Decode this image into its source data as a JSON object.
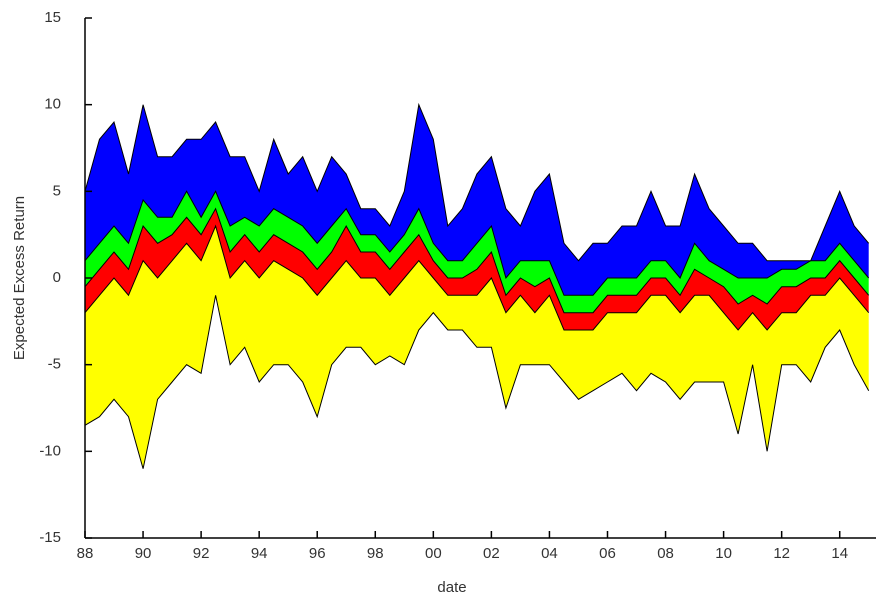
{
  "chart_data": {
    "type": "band",
    "xlabel": "date",
    "ylabel": "Expected Excess Return",
    "x": [
      1988,
      1988.5,
      1989,
      1989.5,
      1990,
      1990.5,
      1991,
      1991.5,
      1992,
      1992.5,
      1993,
      1993.5,
      1994,
      1994.5,
      1995,
      1995.5,
      1996,
      1996.5,
      1997,
      1997.5,
      1998,
      1998.5,
      1999,
      1999.5,
      2000,
      2000.5,
      2001,
      2001.5,
      2002,
      2002.5,
      2003,
      2003.5,
      2004,
      2004.5,
      2005,
      2005.5,
      2006,
      2006.5,
      2007,
      2007.5,
      2008,
      2008.5,
      2009,
      2009.5,
      2010,
      2010.5,
      2011,
      2011.5,
      2012,
      2012.5,
      2013,
      2013.5,
      2014,
      2014.5,
      2015
    ],
    "line_color": "#000000",
    "series": [
      {
        "values": [
          -8.5,
          -8,
          -7,
          -8,
          -11,
          -7,
          -6,
          -5,
          -5.5,
          -1,
          -5,
          -4,
          -6,
          -5,
          -5,
          -6,
          -8,
          -5,
          -4,
          -4,
          -5,
          -4.5,
          -5,
          -3,
          -2,
          -3,
          -3,
          -4,
          -4,
          -7.5,
          -5,
          -5,
          -5,
          -6,
          -7,
          -6.5,
          -6,
          -5.5,
          -6.5,
          -5.5,
          -6,
          -7,
          -6,
          -6,
          -6,
          -9,
          -5,
          -10,
          -5,
          -5,
          -6,
          -4,
          -3,
          -5,
          -6.5
        ]
      },
      {
        "color": "#ffff00",
        "values": [
          -2,
          -1,
          0,
          -1,
          1,
          0,
          1,
          2,
          1,
          3,
          0,
          1,
          0,
          1,
          0.5,
          0,
          -1,
          0,
          1,
          0,
          0,
          -1,
          0,
          1,
          0,
          -1,
          -1,
          -1,
          0,
          -2,
          -1,
          -2,
          -1,
          -3,
          -3,
          -3,
          -2,
          -2,
          -2,
          -1,
          -1,
          -2,
          -1,
          -1,
          -2,
          -3,
          -2,
          -3,
          -2,
          -2,
          -1,
          -1,
          0,
          -1,
          -2
        ]
      },
      {
        "color": "#ff0000",
        "values": [
          -0.5,
          0.5,
          1.5,
          0.5,
          3,
          2,
          2.5,
          3.5,
          2.5,
          4,
          1.5,
          2.5,
          1.5,
          2.5,
          2,
          1.5,
          0.5,
          1.5,
          3,
          1.5,
          1.5,
          0.5,
          1.5,
          2.5,
          1,
          0,
          0,
          0.5,
          1.5,
          -1,
          0,
          -0.5,
          0,
          -2,
          -2,
          -2,
          -1,
          -1,
          -1,
          0,
          0,
          -1,
          0.5,
          0,
          -0.5,
          -1.5,
          -1,
          -1.5,
          -0.5,
          -0.5,
          0,
          0,
          1,
          0,
          -1
        ]
      },
      {
        "color": "#00ff00",
        "values": [
          1,
          2,
          3,
          2,
          4.5,
          3.5,
          3.5,
          5,
          3.5,
          5,
          3,
          3.5,
          3,
          4,
          3.5,
          3,
          2,
          3,
          4,
          2.5,
          2.5,
          1.5,
          2.5,
          4,
          2,
          1,
          1,
          2,
          3,
          0,
          1,
          1,
          1,
          -1,
          -1,
          -1,
          0,
          0,
          0,
          1,
          1,
          0,
          2,
          1,
          0.5,
          0,
          0,
          0,
          0.5,
          0.5,
          1,
          1,
          2,
          1,
          0
        ]
      },
      {
        "color": "#0000ff",
        "values": [
          5,
          8,
          9,
          6,
          10,
          7,
          7,
          8,
          8,
          9,
          7,
          7,
          5,
          8,
          6,
          7,
          5,
          7,
          6,
          4,
          4,
          3,
          5,
          10,
          8,
          3,
          4,
          6,
          7,
          4,
          3,
          5,
          6,
          2,
          1,
          2,
          2,
          3,
          3,
          5,
          3,
          3,
          6,
          4,
          3,
          2,
          2,
          1,
          1,
          1,
          1,
          3,
          5,
          3,
          2
        ]
      }
    ],
    "xlim": [
      1988,
      2015.25
    ],
    "xticks": [
      {
        "value": 1988,
        "label": "88"
      },
      {
        "value": 1990,
        "label": "90"
      },
      {
        "value": 1992,
        "label": "92"
      },
      {
        "value": 1994,
        "label": "94"
      },
      {
        "value": 1996,
        "label": "96"
      },
      {
        "value": 1998,
        "label": "98"
      },
      {
        "value": 2000,
        "label": "00"
      },
      {
        "value": 2002,
        "label": "02"
      },
      {
        "value": 2004,
        "label": "04"
      },
      {
        "value": 2006,
        "label": "06"
      },
      {
        "value": 2008,
        "label": "08"
      },
      {
        "value": 2010,
        "label": "10"
      },
      {
        "value": 2012,
        "label": "12"
      },
      {
        "value": 2014,
        "label": "14"
      }
    ],
    "ylim": [
      -15,
      15
    ],
    "yticks": [
      -15,
      -10,
      -5,
      0,
      5,
      10,
      15
    ]
  }
}
